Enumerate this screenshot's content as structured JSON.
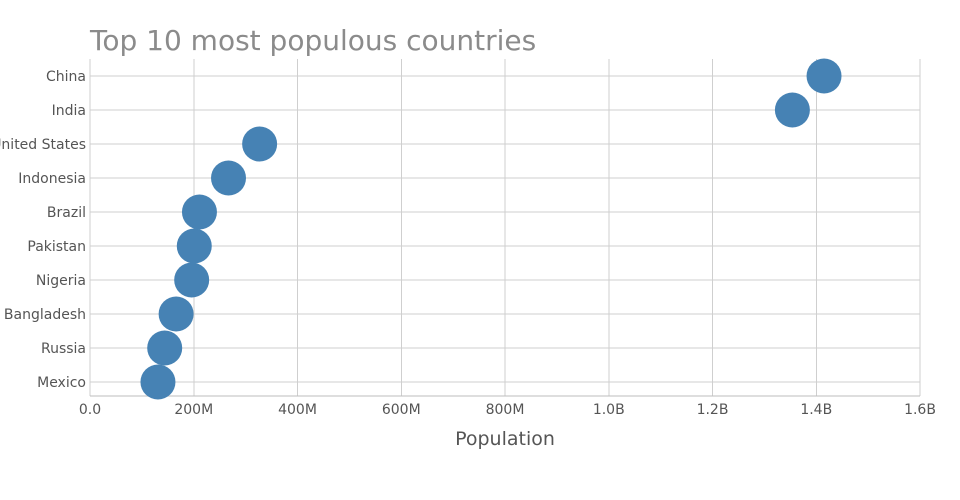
{
  "chart_data": {
    "type": "scatter",
    "title": "Top 10 most populous countries",
    "xlabel": "Population",
    "ylabel": "",
    "categories": [
      "China",
      "India",
      "United States",
      "Indonesia",
      "Brazil",
      "Pakistan",
      "Nigeria",
      "Bangladesh",
      "Russia",
      "Mexico"
    ],
    "series": [
      {
        "values": [
          1415000000,
          1354000000,
          327000000,
          267000000,
          211000000,
          201000000,
          196000000,
          166000000,
          144000000,
          131000000
        ]
      }
    ],
    "xlim": [
      0,
      1600000000
    ],
    "x_ticks": [
      0,
      200000000,
      400000000,
      600000000,
      800000000,
      1000000000,
      1200000000,
      1400000000,
      1600000000
    ],
    "x_tick_labels": [
      "0.0",
      "200M",
      "400M",
      "600M",
      "800M",
      "1.0B",
      "1.2B",
      "1.4B",
      "1.6B"
    ],
    "grid": true,
    "marker_color": "#4682b4"
  }
}
